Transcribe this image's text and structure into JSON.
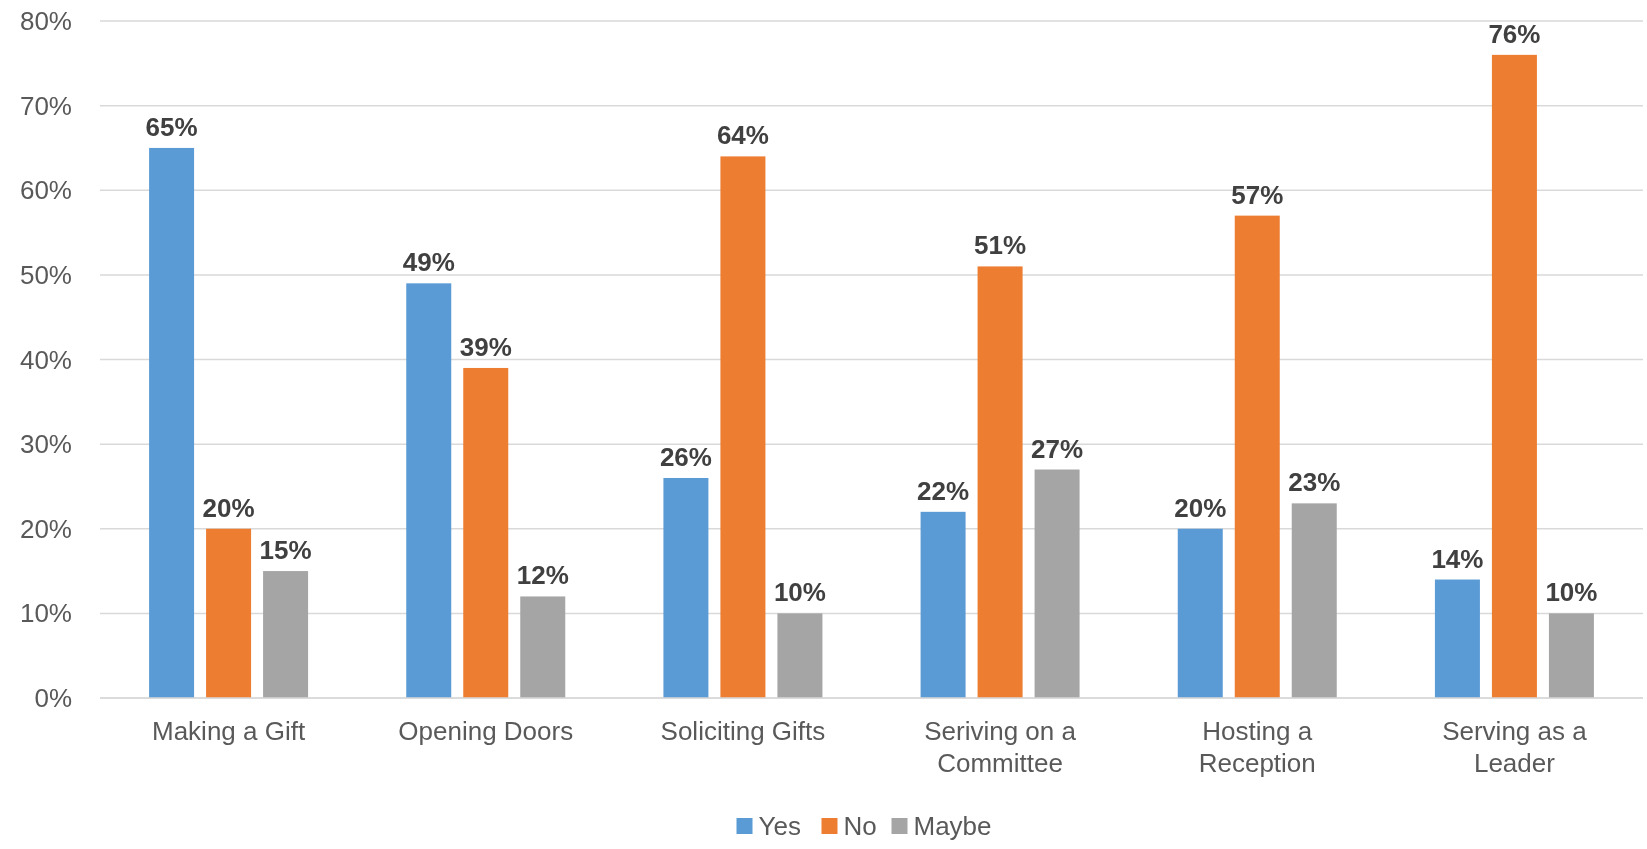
{
  "chart_data": {
    "type": "bar",
    "categories": [
      "Making a Gift",
      "Opening Doors",
      "Soliciting Gifts",
      "Seriving on a Committee",
      "Hosting a Reception",
      "Serving as a Leader"
    ],
    "series": [
      {
        "name": "Yes",
        "color": "#5b9bd5",
        "values": [
          65,
          49,
          26,
          22,
          20,
          14
        ],
        "value_labels": [
          "65%",
          "49%",
          "26%",
          "22%",
          "20%",
          "14%"
        ]
      },
      {
        "name": "No",
        "color": "#ed7d31",
        "values": [
          20,
          39,
          64,
          51,
          57,
          76
        ],
        "value_labels": [
          "20%",
          "39%",
          "64%",
          "51%",
          "57%",
          "76%"
        ]
      },
      {
        "name": "Maybe",
        "color": "#a5a5a5",
        "values": [
          15,
          12,
          10,
          27,
          23,
          10
        ],
        "value_labels": [
          "15%",
          "12%",
          "10%",
          "27%",
          "23%",
          "10%"
        ]
      }
    ],
    "ylim": [
      0,
      80
    ],
    "yticks": [
      {
        "value": 0,
        "label": "0%"
      },
      {
        "value": 10,
        "label": "10%"
      },
      {
        "value": 20,
        "label": "20%"
      },
      {
        "value": 30,
        "label": "30%"
      },
      {
        "value": 40,
        "label": "40%"
      },
      {
        "value": 50,
        "label": "50%"
      },
      {
        "value": 60,
        "label": "60%"
      },
      {
        "value": 70,
        "label": "70%"
      },
      {
        "value": 80,
        "label": "80%"
      }
    ],
    "grid": "y",
    "legend": "bottom"
  }
}
